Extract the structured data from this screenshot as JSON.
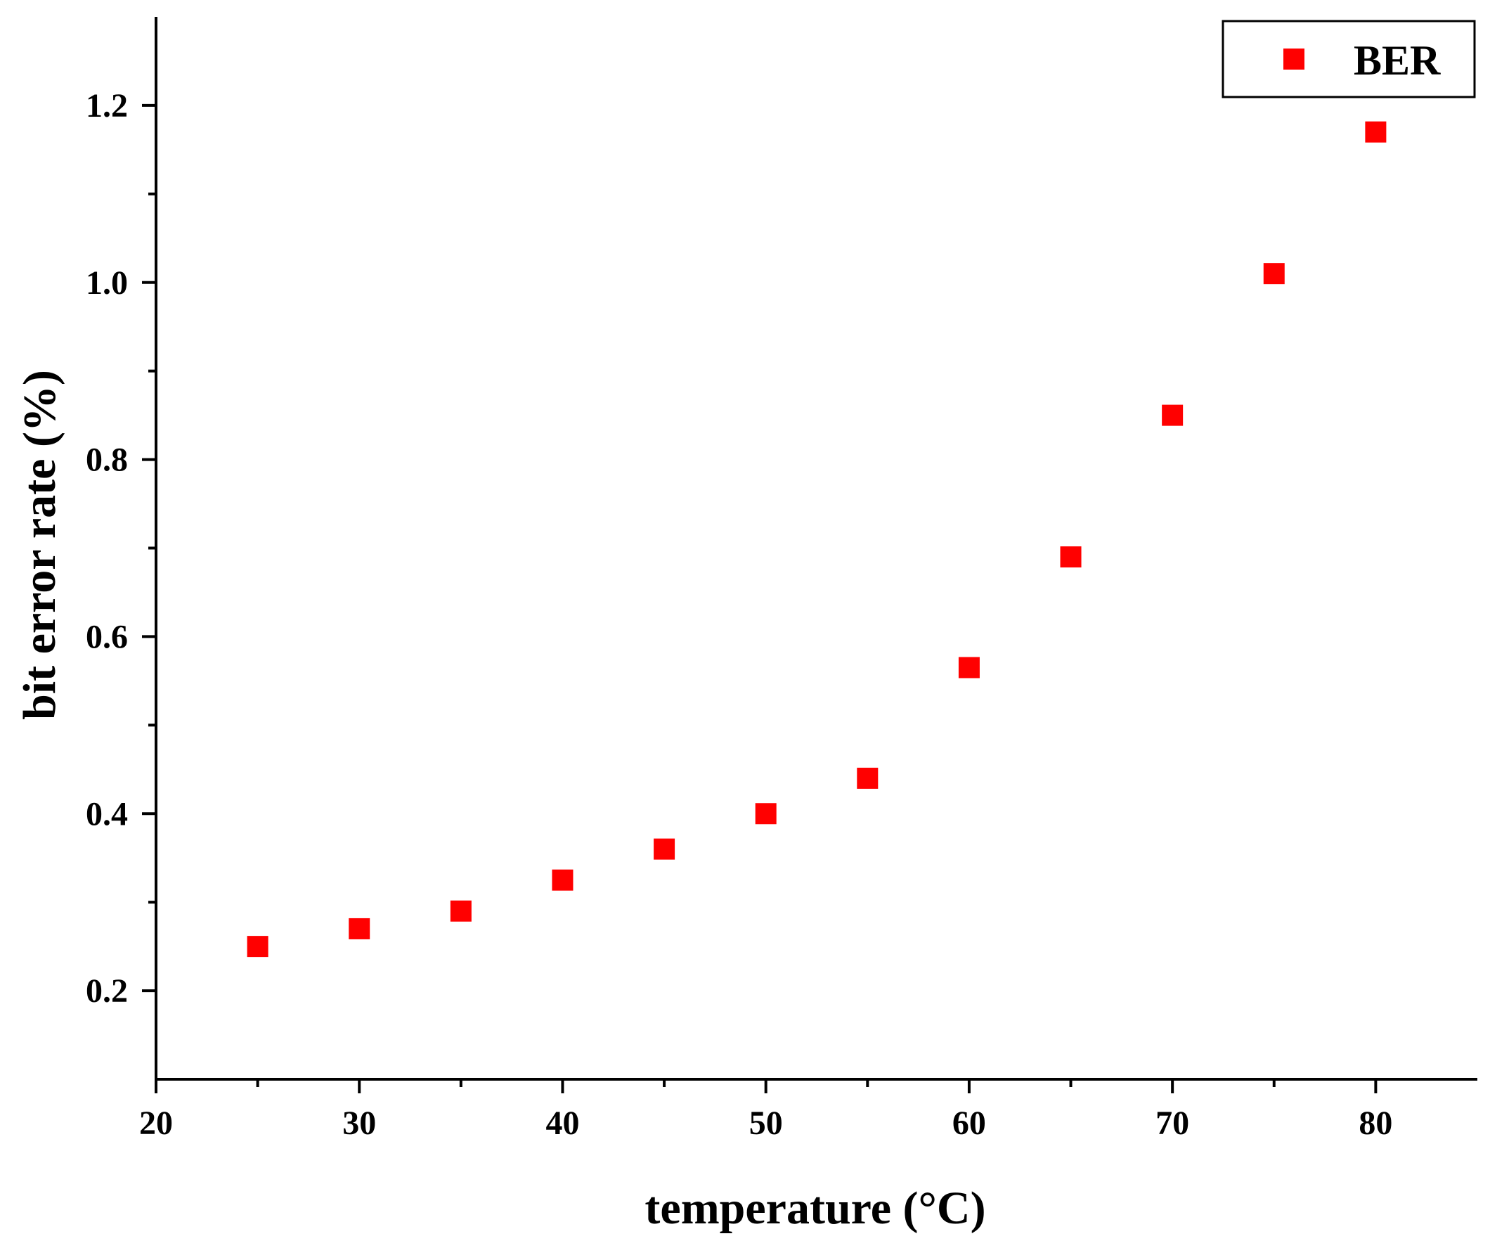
{
  "chart_data": {
    "type": "scatter",
    "title": "",
    "xlabel": "temperature (°C)",
    "ylabel": "bit error rate (%)",
    "xlim": [
      20,
      85
    ],
    "ylim": [
      0.1,
      1.3
    ],
    "x_ticks": [
      20,
      30,
      40,
      50,
      60,
      70,
      80
    ],
    "y_ticks": [
      0.2,
      0.4,
      0.6,
      0.8,
      1.0,
      1.2
    ],
    "y_tick_labels": [
      "0.2",
      "0.4",
      "0.6",
      "0.8",
      "1.0",
      "1.2"
    ],
    "grid": false,
    "legend_position": "top-right",
    "series": [
      {
        "name": "BER",
        "color": "#ff0000",
        "marker": "square",
        "x": [
          25,
          30,
          35,
          40,
          45,
          50,
          55,
          60,
          65,
          70,
          75,
          80
        ],
        "y": [
          0.25,
          0.27,
          0.29,
          0.325,
          0.36,
          0.4,
          0.44,
          0.565,
          0.69,
          0.85,
          1.01,
          1.17
        ]
      }
    ]
  }
}
